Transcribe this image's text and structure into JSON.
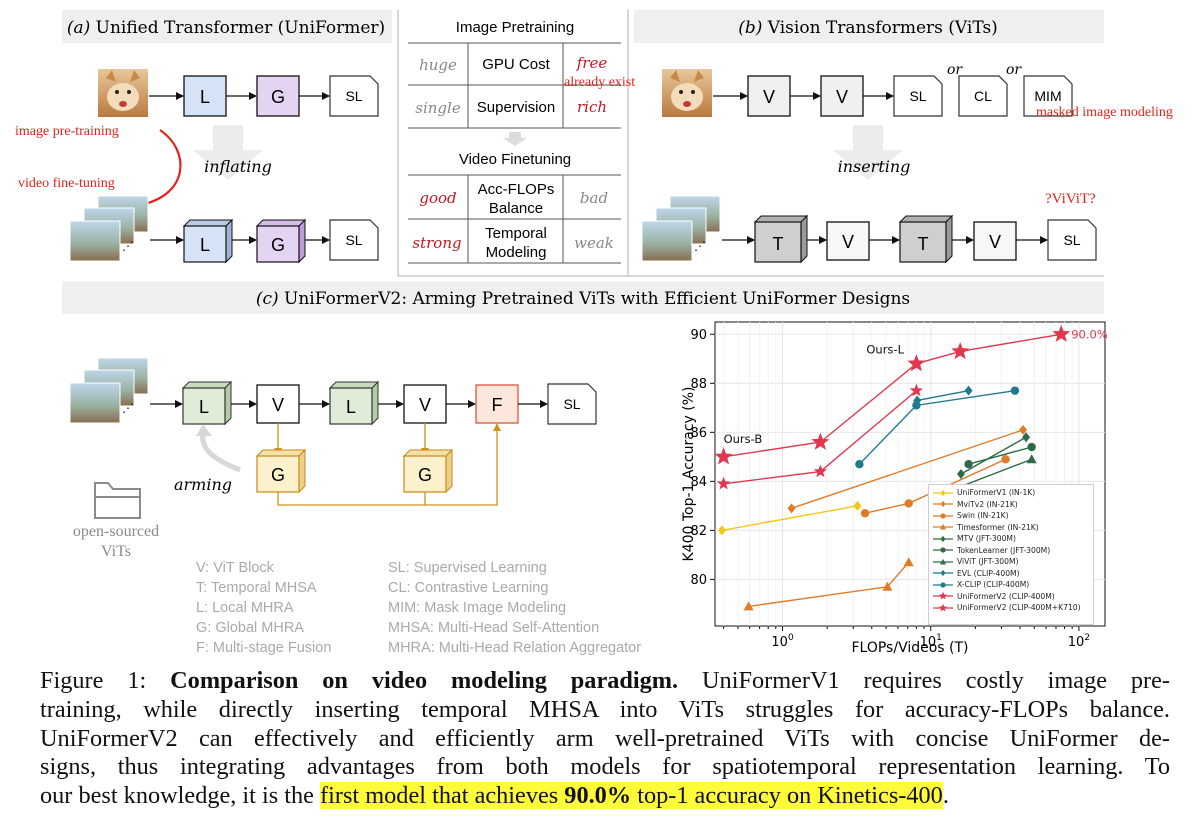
{
  "panel_a": {
    "title_prefix": "(a)",
    "title": "Unified Transformer (UniFormer)",
    "blocks_top": [
      "L",
      "G",
      "SL"
    ],
    "blocks_bottom": [
      "L",
      "G",
      "SL"
    ],
    "annot_image_pretraining": "image pre-training",
    "annot_video_finetuning": "video fine-tuning",
    "arrow_label": "inflating"
  },
  "comparison_table": {
    "image_pretraining": {
      "title": "Image Pretraining",
      "rows": [
        {
          "left": "huge",
          "center": "GPU Cost",
          "right": "free",
          "right_note": "already exist"
        },
        {
          "left": "single",
          "center": "Supervision",
          "right": "rich"
        }
      ]
    },
    "video_finetuning": {
      "title": "Video Finetuning",
      "rows": [
        {
          "left": "good",
          "center_line1": "Acc-FLOPs",
          "center_line2": "Balance",
          "right": "bad"
        },
        {
          "left": "strong",
          "center_line1": "Temporal",
          "center_line2": "Modeling",
          "right": "weak"
        }
      ]
    }
  },
  "panel_b": {
    "title_prefix": "(b)",
    "title": "Vision Transformers (ViTs)",
    "blocks_top": [
      "V",
      "V",
      "SL",
      "CL",
      "MIM"
    ],
    "or_labels": [
      "or",
      "or"
    ],
    "annot_mim": "masked image modeling",
    "arrow_label": "inserting",
    "blocks_bottom": [
      "T",
      "V",
      "T",
      "V",
      "SL"
    ],
    "annot_vivit": "?ViViT?"
  },
  "panel_c": {
    "title_prefix": "(c)",
    "title": "UniFormerV2: Arming Pretrained ViTs with Efficient UniFormer Designs",
    "blocks_main": [
      "L",
      "V",
      "L",
      "V",
      "F",
      "SL"
    ],
    "blocks_global": [
      "G",
      "G"
    ],
    "arming_label": "arming",
    "source_label_line1": "open-sourced",
    "source_label_line2": "ViTs",
    "abbreviations_left": [
      "V: ViT Block",
      "T: Temporal MHSA",
      "L: Local MHRA",
      "G: Global MHRA",
      "F: Multi-stage Fusion"
    ],
    "abbreviations_right": [
      "SL: Supervised Learning",
      "CL: Contrastive Learning",
      "MIM: Mask Image Modeling",
      "MHSA: Multi-Head Self-Attention",
      "MHRA: Multi-Head Relation Aggregator"
    ]
  },
  "chart_data": {
    "type": "line",
    "xlabel": "FLOPs/Videos (T)",
    "ylabel": "K400 Top-1 Accuracy (%)",
    "x_scale": "log",
    "xlim": [
      0.35,
      150
    ],
    "ylim": [
      78.1,
      90.5
    ],
    "yticks": [
      80,
      82,
      84,
      86,
      88,
      90
    ],
    "xticks": [
      "10^0",
      "10^1",
      "10^2"
    ],
    "grid": true,
    "legend_position": "lower-right",
    "annotations": [
      {
        "text": "Ours-B",
        "x": 0.4,
        "y": 85.0
      },
      {
        "text": "Ours-L",
        "x": 8.0,
        "y": 88.8
      },
      {
        "text": "90.0%",
        "x": 76,
        "y": 90.0
      }
    ],
    "series": [
      {
        "name": "UniFormerV1 (IN-1K)",
        "color": "#f5c518",
        "marker": "diamond",
        "points": [
          [
            0.39,
            82.0
          ],
          [
            3.2,
            83.0
          ]
        ]
      },
      {
        "name": "MviTv2 (IN-21K)",
        "color": "#e07b27",
        "marker": "diamond",
        "points": [
          [
            1.15,
            82.9
          ],
          [
            42,
            86.1
          ]
        ]
      },
      {
        "name": "Swin (IN-21K)",
        "color": "#e07b27",
        "marker": "circle",
        "points": [
          [
            3.6,
            82.7
          ],
          [
            7.1,
            83.1
          ],
          [
            32,
            84.9
          ]
        ]
      },
      {
        "name": "Timesformer (IN-21K)",
        "color": "#e07b27",
        "marker": "triangle",
        "points": [
          [
            0.59,
            78.9
          ],
          [
            5.1,
            79.7
          ],
          [
            7.1,
            80.7
          ]
        ]
      },
      {
        "name": "MTV (JFT-300M)",
        "color": "#2e6b47",
        "marker": "diamond",
        "points": [
          [
            16,
            84.3
          ],
          [
            44,
            85.8
          ]
        ]
      },
      {
        "name": "TokenLearner (JFT-300M)",
        "color": "#2e6b47",
        "marker": "circle",
        "points": [
          [
            18,
            84.7
          ],
          [
            48,
            85.4
          ]
        ]
      },
      {
        "name": "ViViT (JFT-300M)",
        "color": "#2e6b47",
        "marker": "triangle",
        "points": [
          [
            12,
            83.5
          ],
          [
            48,
            84.9
          ]
        ]
      },
      {
        "name": "EVL (CLIP-400M)",
        "color": "#1f7a8c",
        "marker": "diamond",
        "points": [
          [
            8.1,
            87.3
          ],
          [
            18,
            87.7
          ]
        ]
      },
      {
        "name": "X-CLIP (CLIP-400M)",
        "color": "#1f7a8c",
        "marker": "circle",
        "points": [
          [
            3.3,
            84.7
          ],
          [
            8.0,
            87.1
          ],
          [
            37,
            87.7
          ]
        ]
      },
      {
        "name": "UniFormerV2 (CLIP-400M)",
        "color": "#e0394f",
        "marker": "star",
        "points": [
          [
            0.4,
            83.9
          ],
          [
            1.8,
            84.4
          ],
          [
            8.0,
            87.7
          ]
        ]
      },
      {
        "name": "UniFormerV2 (CLIP-400M+K710)",
        "color": "#e0394f",
        "marker": "star",
        "points": [
          [
            0.4,
            85.0
          ],
          [
            1.8,
            85.6
          ],
          [
            8.0,
            88.8
          ],
          [
            15.8,
            89.3
          ],
          [
            76,
            90.0
          ]
        ]
      }
    ]
  },
  "caption": {
    "line1_prefix": "Figure 1: ",
    "line1_bold": "Comparison on video modeling paradigm.",
    "line1_rest": " UniFormerV1 requires costly image pre-",
    "line2": "training, while directly inserting temporal MHSA into ViTs struggles for accuracy-FLOPs balance.",
    "line3": "UniFormerV2 can effectively and efficiently arm well-pretrained ViTs with concise UniFormer de-",
    "line4": "signs, thus integrating advantages from both models for spatiotemporal representation learning. To",
    "line5_prefix": "our best knowledge, it is the ",
    "line5_hl_a": "first model that achieves ",
    "line5_hl_bold": "90.0%",
    "line5_hl_b": " top-1 accuracy on Kinetics-400",
    "line5_suffix": "."
  }
}
